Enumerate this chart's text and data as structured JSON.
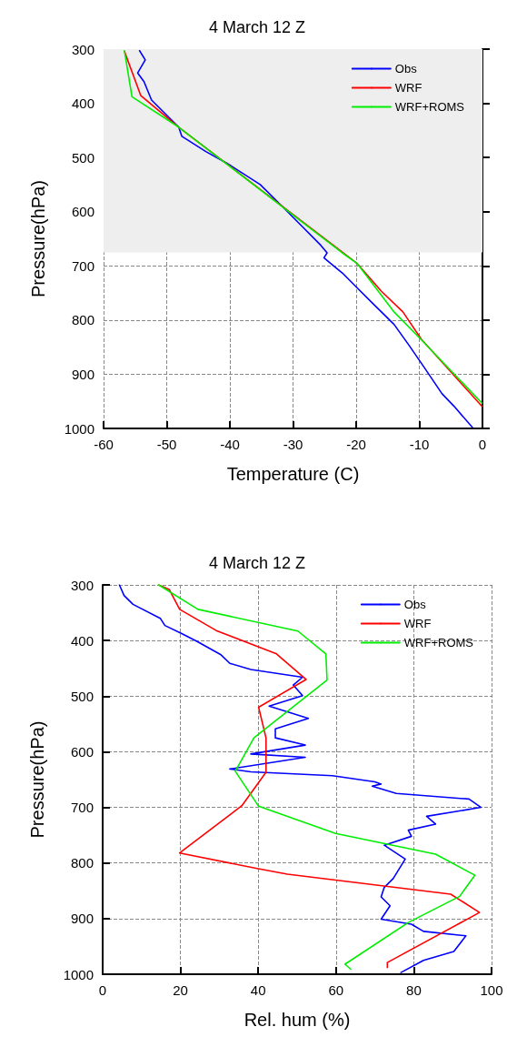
{
  "chart_data": [
    {
      "type": "line",
      "title": "4 March 12 Z",
      "xlabel": "Temperature (C)",
      "ylabel": "Pressure(hPa)",
      "xlim": [
        -60,
        0
      ],
      "xticks": [
        -60,
        -50,
        -40,
        -30,
        -20,
        -10,
        0
      ],
      "ylim": [
        1000,
        300
      ],
      "yticks": [
        300,
        400,
        500,
        600,
        700,
        800,
        900,
        1000
      ],
      "grid": true,
      "legend": "top right",
      "line_style": "solid",
      "marker": "none",
      "bands": [
        {
          "axis": "y",
          "from": 300,
          "to": 675,
          "color": "#eeeeee"
        }
      ],
      "series": [
        {
          "name": "Obs",
          "color": "#0000ff",
          "x": [
            -54.3,
            -53.4,
            -54.6,
            -53.6,
            -52.4,
            -48.1,
            -47.6,
            -43.8,
            -40.4,
            -35.2,
            -31.3,
            -28.4,
            -25.6,
            -24.6,
            -25.1,
            -24.6,
            -22.2,
            -19.8,
            -17.4,
            -14.0,
            -11.6,
            -9.3,
            -6.4,
            -4.5,
            -1.6
          ],
          "values": [
            303,
            320,
            344,
            360,
            394,
            444,
            461,
            489,
            511,
            550,
            595,
            629,
            662,
            676,
            685,
            690,
            713,
            741,
            769,
            808,
            847,
            886,
            936,
            959,
            998
          ]
        },
        {
          "name": "WRF",
          "color": "#ff0000",
          "x": [
            -56.7,
            -54.1,
            -48.1,
            -19.8,
            -16.0,
            -12.6,
            -9.7,
            -0.1
          ],
          "values": [
            304,
            386,
            444,
            696,
            747,
            785,
            835,
            959
          ]
        },
        {
          "name": "WRF+ROMS",
          "color": "#00ee00",
          "x": [
            -56.7,
            -55.5,
            -48.1,
            -22.2,
            -19.8,
            -14.0,
            -9.3,
            -0.1
          ],
          "values": [
            303,
            388,
            444,
            676,
            696,
            785,
            841,
            953
          ]
        }
      ]
    },
    {
      "type": "line",
      "title": "4 March 12 Z",
      "xlabel": "Rel. hum (%)",
      "ylabel": "Pressure(hPa)",
      "xlim": [
        0,
        100
      ],
      "xticks": [
        0,
        20,
        40,
        60,
        80,
        100
      ],
      "ylim": [
        1000,
        300
      ],
      "yticks": [
        300,
        400,
        500,
        600,
        700,
        800,
        900,
        1000
      ],
      "grid": true,
      "legend": "top right",
      "line_style": "solid",
      "marker": "none",
      "series": [
        {
          "name": "Obs",
          "color": "#0000ff",
          "x": [
            4.3,
            5.5,
            7.8,
            14.8,
            16.0,
            20.2,
            24.1,
            30.3,
            32.7,
            38.1,
            51.4,
            49.0,
            51.4,
            42.8,
            52.9,
            44.4,
            44.4,
            52.1,
            38.1,
            52.1,
            32.7,
            38.1,
            59.1,
            70.0,
            71.6,
            69.3,
            75.5,
            94.2,
            97.3,
            83.3,
            85.6,
            78.6,
            79.4,
            72.4,
            77.8,
            74.7,
            72.4,
            71.6,
            73.9,
            71.6,
            79.4,
            82.5,
            93.4,
            90.3,
            82.5,
            76.7
          ],
          "values": [
            300,
            319,
            335,
            360,
            373,
            387,
            401,
            425,
            441,
            452,
            466,
            480,
            499,
            518,
            540,
            559,
            575,
            588,
            604,
            610,
            631,
            636,
            643,
            654,
            658,
            662,
            675,
            685,
            700,
            716,
            730,
            741,
            752,
            768,
            793,
            828,
            844,
            861,
            877,
            901,
            910,
            923,
            931,
            959,
            975,
            997
          ]
        },
        {
          "name": "WRF",
          "color": "#ff0000",
          "x": [
            14.4,
            17.1,
            19.8,
            29.2,
            44.7,
            52.3,
            40.1,
            42.0,
            42.0,
            35.8,
            19.8,
            39.7,
            47.5,
            89.5,
            96.9,
            73.2,
            73.2
          ],
          "values": [
            300,
            308,
            344,
            382,
            424,
            470,
            520,
            575,
            637,
            697,
            782,
            810,
            820,
            856,
            889,
            979,
            988
          ]
        },
        {
          "name": "WRF+ROMS",
          "color": "#00ee00",
          "x": [
            14.4,
            24.5,
            50.2,
            57.4,
            57.7,
            38.9,
            34.1,
            40.1,
            59.9,
            85.6,
            95.7,
            91.8,
            78.6,
            62.3,
            63.8
          ],
          "values": [
            300,
            344,
            383,
            424,
            471,
            575,
            635,
            698,
            747,
            784,
            822,
            860,
            907,
            982,
            991
          ]
        }
      ]
    }
  ]
}
